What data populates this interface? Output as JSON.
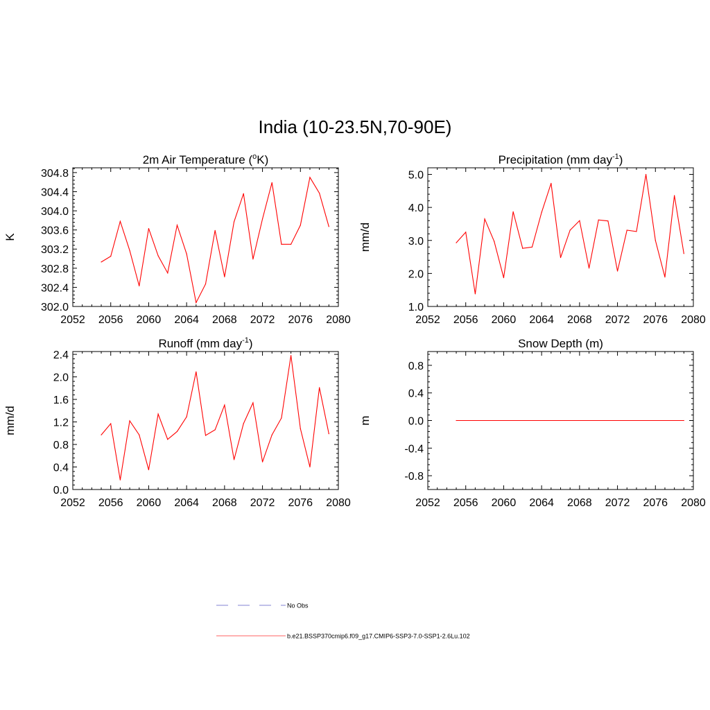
{
  "page_title": "India (10-23.5N,70-90E)",
  "legend": [
    {
      "label": "No Obs",
      "color": "#9b9bdc",
      "style": "dashed"
    },
    {
      "label": "b.e21.BSSP370cmip6.f09_g17.CMIP6-SSP3-7.0-SSP1-2.6Lu.102",
      "color": "#ff8080",
      "style": "solid"
    }
  ],
  "chart_data": [
    {
      "type": "line",
      "title": "2m Air Temperature (oK)",
      "title_main": "2m Air Temperature (",
      "title_sup": "o",
      "title_end": "K)",
      "ylabel": "K",
      "xlim": [
        2052,
        2080
      ],
      "ylim": [
        302.0,
        304.9
      ],
      "yticks": [
        "302.0",
        "302.4",
        "302.8",
        "303.2",
        "303.6",
        "304.0",
        "304.4",
        "304.8"
      ],
      "xticks": [
        "2052",
        "2056",
        "2060",
        "2064",
        "2068",
        "2072",
        "2076",
        "2080"
      ],
      "series": [
        {
          "color": "#ff0000",
          "x": [
            2055,
            2056,
            2057,
            2058,
            2059,
            2060,
            2061,
            2062,
            2063,
            2064,
            2065,
            2066,
            2067,
            2068,
            2069,
            2070,
            2071,
            2072,
            2073,
            2074,
            2075,
            2076,
            2077,
            2078,
            2079
          ],
          "values": [
            302.93,
            303.05,
            303.78,
            303.17,
            302.43,
            303.63,
            303.06,
            302.7,
            303.7,
            303.1,
            302.08,
            302.47,
            303.59,
            302.62,
            303.77,
            304.36,
            302.99,
            303.83,
            304.59,
            303.3,
            303.3,
            303.7,
            304.7,
            304.37,
            303.67
          ]
        }
      ]
    },
    {
      "type": "line",
      "title": "Precipitation (mm day-1)",
      "title_main": "Precipitation (mm day",
      "title_sup": "-1",
      "title_end": ")",
      "ylabel": "mm/d",
      "xlim": [
        2052,
        2080
      ],
      "ylim": [
        1.0,
        5.2
      ],
      "yticks": [
        "1.0",
        "2.0",
        "3.0",
        "4.0",
        "5.0"
      ],
      "xticks": [
        "2052",
        "2056",
        "2060",
        "2064",
        "2068",
        "2072",
        "2076",
        "2080"
      ],
      "series": [
        {
          "color": "#ff0000",
          "x": [
            2055,
            2056,
            2057,
            2058,
            2059,
            2060,
            2061,
            2062,
            2063,
            2064,
            2065,
            2066,
            2067,
            2068,
            2069,
            2070,
            2071,
            2072,
            2073,
            2074,
            2075,
            2076,
            2077,
            2078,
            2079
          ],
          "values": [
            2.93,
            3.25,
            1.38,
            3.65,
            2.97,
            1.87,
            3.87,
            2.76,
            2.8,
            3.85,
            4.73,
            2.48,
            3.31,
            3.6,
            2.16,
            3.62,
            3.59,
            2.07,
            3.31,
            3.27,
            5.0,
            3.0,
            1.89,
            4.36,
            2.6
          ]
        }
      ]
    },
    {
      "type": "line",
      "title": "Runoff (mm day-1)",
      "title_main": "Runoff (mm day",
      "title_sup": "-1",
      "title_end": ")",
      "ylabel": "mm/d",
      "xlim": [
        2052,
        2080
      ],
      "ylim": [
        0.0,
        2.45
      ],
      "yticks": [
        "0.0",
        "0.4",
        "0.8",
        "1.2",
        "1.6",
        "2.0",
        "2.4"
      ],
      "xticks": [
        "2052",
        "2056",
        "2060",
        "2064",
        "2068",
        "2072",
        "2076",
        "2080"
      ],
      "series": [
        {
          "color": "#ff0000",
          "x": [
            2055,
            2056,
            2057,
            2058,
            2059,
            2060,
            2061,
            2062,
            2063,
            2064,
            2065,
            2066,
            2067,
            2068,
            2069,
            2070,
            2071,
            2072,
            2073,
            2074,
            2075,
            2076,
            2077,
            2078,
            2079
          ],
          "values": [
            0.97,
            1.17,
            0.17,
            1.22,
            0.97,
            0.35,
            1.34,
            0.89,
            1.03,
            1.29,
            2.09,
            0.96,
            1.06,
            1.5,
            0.53,
            1.17,
            1.54,
            0.49,
            0.97,
            1.27,
            2.38,
            1.08,
            0.4,
            1.81,
            0.99
          ]
        }
      ]
    },
    {
      "type": "line",
      "title": "Snow Depth (m)",
      "title_main": "Snow Depth (m)",
      "title_sup": "",
      "title_end": "",
      "ylabel": "m",
      "xlim": [
        2052,
        2080
      ],
      "ylim": [
        -1.0,
        1.0
      ],
      "yticks": [
        "-0.8",
        "-0.4",
        "0.0",
        "0.4",
        "0.8"
      ],
      "xticks": [
        "2052",
        "2056",
        "2060",
        "2064",
        "2068",
        "2072",
        "2076",
        "2080"
      ],
      "series": [
        {
          "color": "#ff0000",
          "x": [
            2055,
            2079
          ],
          "values": [
            0.0,
            0.0
          ]
        }
      ]
    }
  ]
}
